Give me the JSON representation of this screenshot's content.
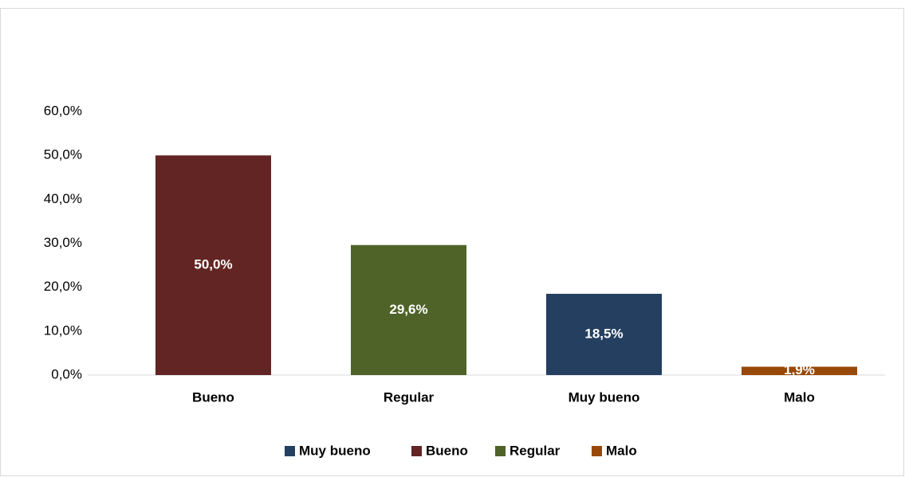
{
  "chart_data": {
    "type": "bar",
    "categories": [
      "Bueno",
      "Regular",
      "Muy bueno",
      "Malo"
    ],
    "series": [
      {
        "name": "Muy bueno",
        "color": "#243f60",
        "values": [
          null,
          null,
          18.5,
          null
        ],
        "value_labels": [
          null,
          null,
          "18,5%",
          null
        ]
      },
      {
        "name": "Bueno",
        "color": "#632523",
        "values": [
          50.0,
          null,
          null,
          null
        ],
        "value_labels": [
          "50,0%",
          null,
          null,
          null
        ]
      },
      {
        "name": "Regular",
        "color": "#4f6228",
        "values": [
          null,
          29.6,
          null,
          null
        ],
        "value_labels": [
          null,
          "29,6%",
          null,
          null
        ]
      },
      {
        "name": "Malo",
        "color": "#984807",
        "values": [
          null,
          null,
          null,
          1.9
        ],
        "value_labels": [
          null,
          null,
          null,
          "1,9%"
        ]
      }
    ],
    "ylim": [
      0,
      60
    ],
    "yticks": [
      {
        "value": 0,
        "label": "0,0%"
      },
      {
        "value": 10,
        "label": "10,0%"
      },
      {
        "value": 20,
        "label": "20,0%"
      },
      {
        "value": 30,
        "label": "30,0%"
      },
      {
        "value": 40,
        "label": "40,0%"
      },
      {
        "value": 50,
        "label": "50,0%"
      },
      {
        "value": 60,
        "label": "60,0%"
      }
    ],
    "grid": false,
    "legend": "bottom"
  }
}
